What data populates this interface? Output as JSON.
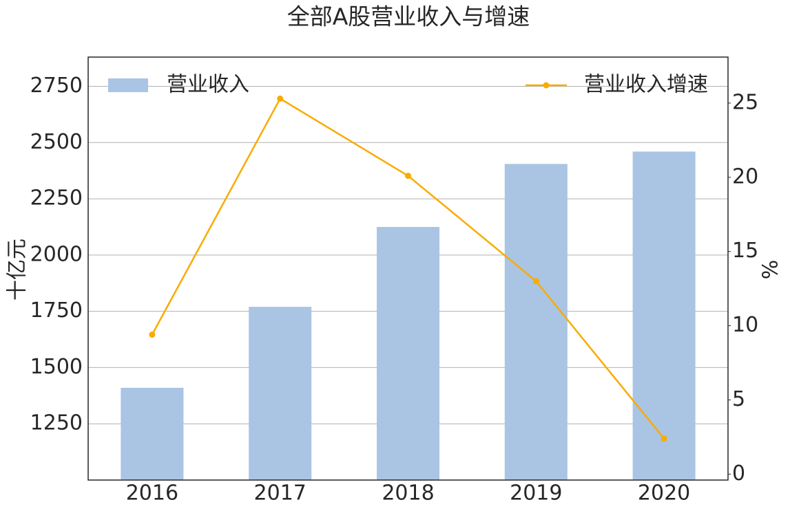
{
  "chart_data": {
    "type": "combo",
    "title": "全部A股营业收入与增速",
    "categories": [
      "2016",
      "2017",
      "2018",
      "2019",
      "2020"
    ],
    "ylabel": "十亿元",
    "y2label": "%",
    "ylim": [
      1000,
      2880
    ],
    "yticks": [
      1250,
      1500,
      1750,
      2000,
      2250,
      2500,
      2750
    ],
    "y2lim": [
      -0.4,
      28.1
    ],
    "y2ticks": [
      0,
      5,
      10,
      15,
      20,
      25
    ],
    "grid": true,
    "series": [
      {
        "name": "营业收入",
        "type": "bar",
        "color": "#aac4e4",
        "values": [
          1410,
          1770,
          2125,
          2405,
          2460
        ],
        "legend": "upper left"
      },
      {
        "name": "营业收入增速",
        "type": "line",
        "axis": "y2",
        "color": "#f9ab00",
        "values": [
          9.4,
          25.3,
          20.1,
          13.0,
          2.4
        ],
        "legend": "upper right"
      }
    ]
  }
}
